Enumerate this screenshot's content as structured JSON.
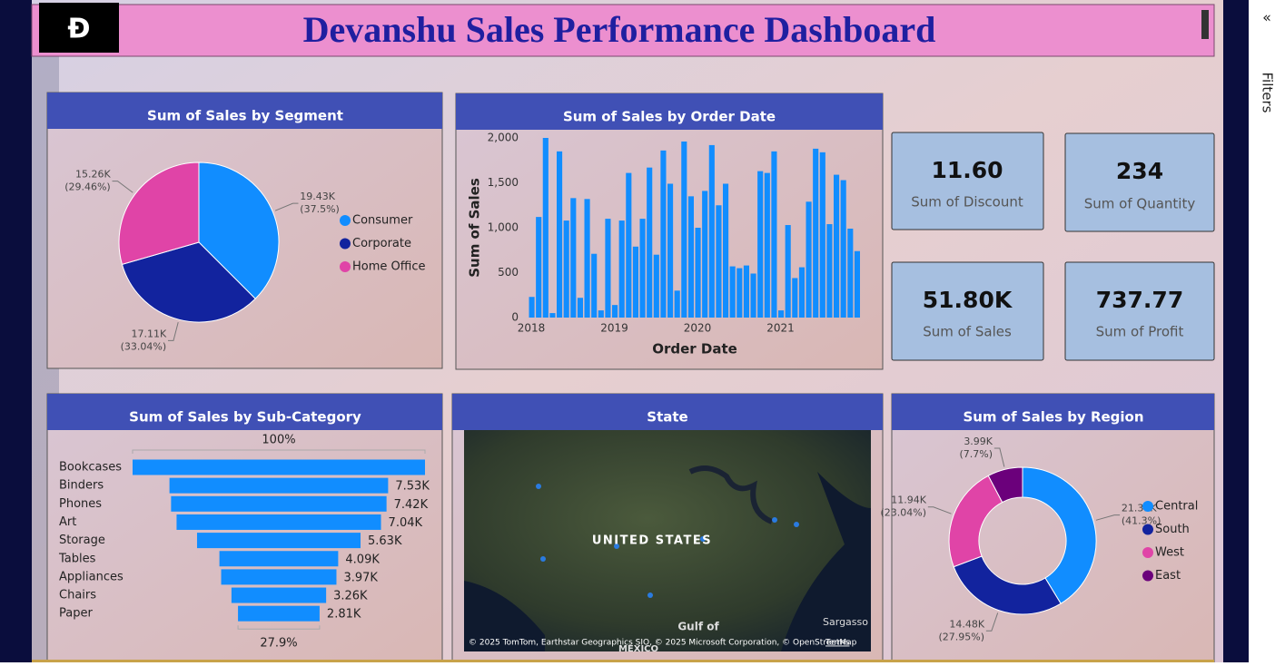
{
  "header": {
    "title": "Devanshu Sales Performance Dashboard"
  },
  "sidebar": {
    "label": "Filters"
  },
  "cards": [
    {
      "value": "11.60",
      "label": "Sum of Discount"
    },
    {
      "value": "234",
      "label": "Sum of Quantity"
    },
    {
      "value": "51.80K",
      "label": "Sum of Sales"
    },
    {
      "value": "737.77",
      "label": "Sum of Profit"
    }
  ],
  "map": {
    "title": "State",
    "labels": [
      "UNITED STATES",
      "Gulf of",
      "MEXICO",
      "Sargasso"
    ],
    "attribution": "© 2025 TomTom, Earthstar Geographics SIO, © 2025 Microsoft Corporation, © OpenStreetMap",
    "terms": "Terms"
  },
  "chart_data": [
    {
      "type": "pie",
      "title": "Sum of Sales by Segment",
      "categories": [
        "Consumer",
        "Corporate",
        "Home Office"
      ],
      "values": [
        19430,
        17110,
        15260
      ],
      "value_labels": [
        "19.43K",
        "17.11K",
        "15.26K"
      ],
      "percent_labels": [
        "(37.5%)",
        "(33.04%)",
        "(29.46%)"
      ],
      "colors": [
        "#118dff",
        "#12239e",
        "#e044a7"
      ]
    },
    {
      "type": "bar",
      "title": "Sum of Sales by Order Date",
      "xlabel": "Order Date",
      "ylabel": "Sum of Sales",
      "categories": [
        "2018",
        null,
        null,
        null,
        null,
        null,
        null,
        null,
        null,
        null,
        null,
        null,
        "2019",
        null,
        null,
        null,
        null,
        null,
        null,
        null,
        null,
        null,
        null,
        null,
        "2020",
        null,
        null,
        null,
        null,
        null,
        null,
        null,
        null,
        null,
        null,
        null,
        "2021",
        null,
        null,
        null,
        null,
        null,
        null,
        null,
        null,
        null,
        null,
        null
      ],
      "values": [
        230,
        1120,
        2000,
        50,
        1850,
        1080,
        1330,
        220,
        1320,
        710,
        80,
        1100,
        140,
        1080,
        1610,
        790,
        1100,
        1670,
        700,
        1860,
        1490,
        300,
        1960,
        1350,
        1000,
        1410,
        1920,
        1250,
        1490,
        570,
        550,
        580,
        490,
        1630,
        1610,
        1850,
        80,
        1030,
        440,
        560,
        1290,
        1880,
        1840,
        1040,
        1590,
        1530,
        990,
        740
      ],
      "color": "#118dff",
      "ylim": [
        0,
        2000
      ],
      "yticks": [
        0,
        500,
        {
          "value": 1000,
          "label": "1,000"
        },
        {
          "value": 1500,
          "label": "1,500"
        },
        {
          "value": 2000,
          "label": "2,000"
        }
      ],
      "grid": false
    },
    {
      "type": "funnel",
      "title": "Sum of Sales by Sub-Category",
      "categories": [
        "Bookcases",
        "Binders",
        "Phones",
        "Art",
        "Storage",
        "Tables",
        "Appliances",
        "Chairs",
        "Paper"
      ],
      "values": [
        10070,
        7530,
        7420,
        7040,
        5630,
        4090,
        3970,
        3260,
        2810
      ],
      "value_labels": [
        null,
        "7.53K",
        "7.42K",
        "7.04K",
        "5.63K",
        "4.09K",
        "3.97K",
        "3.26K",
        "2.81K"
      ],
      "top_label": "100%",
      "bottom_label": "27.9%",
      "color": "#118dff"
    },
    {
      "type": "donut",
      "title": "Sum of Sales by Region",
      "categories": [
        "Central",
        "South",
        "West",
        "East"
      ],
      "values": [
        21390,
        14480,
        11940,
        3990
      ],
      "value_labels": [
        "21.39K",
        "14.48K",
        "11.94K",
        "3.99K"
      ],
      "percent_labels": [
        "(41.3%)",
        "(27.95%)",
        "(23.04%)",
        "(7.7%)"
      ],
      "colors": [
        "#118dff",
        "#12239e",
        "#e044a7",
        "#6b007b"
      ]
    }
  ]
}
